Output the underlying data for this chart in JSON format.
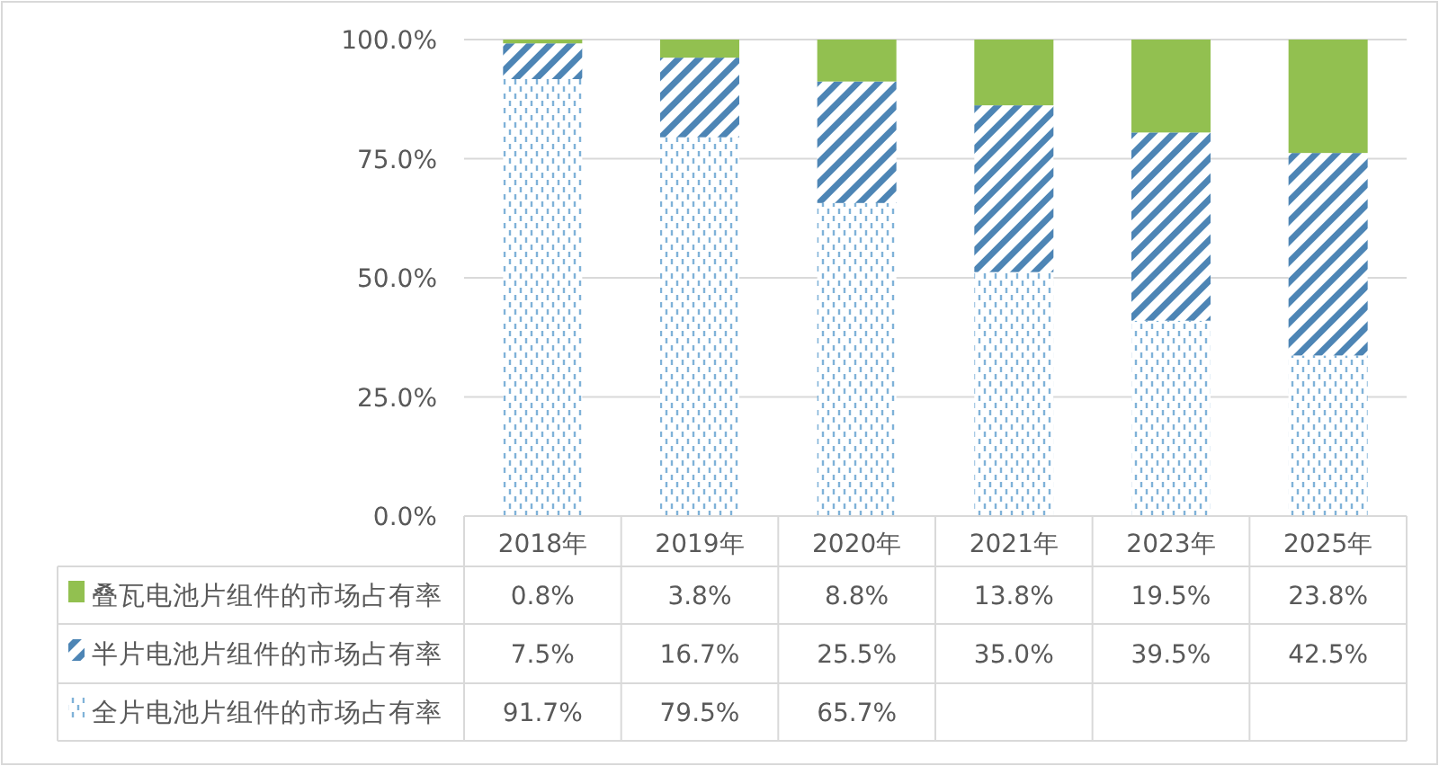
{
  "chart_data": {
    "type": "bar",
    "stacked": true,
    "categories": [
      "2018年",
      "2019年",
      "2020年",
      "2021年",
      "2023年",
      "2025年"
    ],
    "series": [
      {
        "name": "全片电池片组件的市场占有率",
        "color": "#7fb2d8",
        "values": [
          91.7,
          79.5,
          65.7,
          51.2,
          41.0,
          33.7
        ],
        "value_labels": [
          "91.7%",
          "79.5%",
          "65.7%",
          null,
          null,
          null
        ]
      },
      {
        "name": "半片电池片组件的市场占有率",
        "color": "#4d85b5",
        "values": [
          7.5,
          16.7,
          25.5,
          35.0,
          39.5,
          42.5
        ],
        "value_labels": [
          "7.5%",
          "16.7%",
          "25.5%",
          "35.0%",
          "39.5%",
          "42.5%"
        ]
      },
      {
        "name": "叠瓦电池片组件的市场占有率",
        "color": "#92c050",
        "values": [
          0.8,
          3.8,
          8.8,
          13.8,
          19.5,
          23.8
        ],
        "value_labels": [
          "0.8%",
          "3.8%",
          "8.8%",
          "13.8%",
          "19.5%",
          "23.8%"
        ]
      }
    ],
    "ylim": [
      0,
      100
    ],
    "yticks": [
      {
        "value": 0,
        "label": "0.0%"
      },
      {
        "value": 25,
        "label": "25.0%"
      },
      {
        "value": 50,
        "label": "50.0%"
      },
      {
        "value": 75,
        "label": "75.0%"
      },
      {
        "value": 100,
        "label": "100.0%"
      }
    ],
    "grid": "y",
    "legend": "left"
  }
}
